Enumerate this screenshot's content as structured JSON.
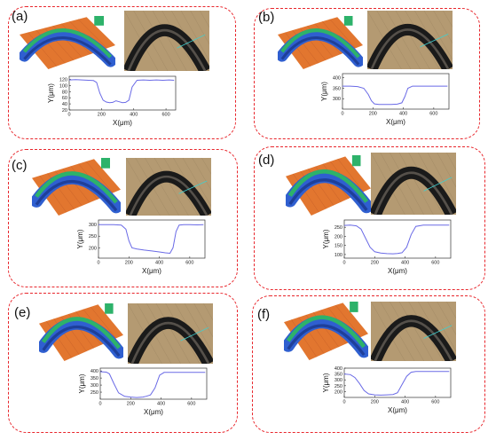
{
  "figure": {
    "panels": [
      {
        "label": "(a)"
      },
      {
        "label": "(b)"
      },
      {
        "label": "(c)"
      },
      {
        "label": "(d)"
      },
      {
        "label": "(e)"
      },
      {
        "label": "(f)"
      }
    ],
    "colors": {
      "border": "#e8262c",
      "profile_line": "#6a6ae6",
      "surface_orange": "#e2762f",
      "surface_blue": "#2f5fd0",
      "surface_green": "#2db26a",
      "micro_bg": "#b49a72",
      "micro_band": "#1a1a1a"
    }
  },
  "chart_data": [
    {
      "type": "line",
      "panel": "(a)",
      "xlabel": "X(μm)",
      "ylabel": "Y(μm)",
      "xlim": [
        0,
        660
      ],
      "ylim": [
        20,
        130
      ],
      "xticks": [
        0,
        200,
        400,
        600
      ],
      "yticks": [
        20,
        40,
        60,
        80,
        100,
        120
      ],
      "x": [
        0,
        40,
        80,
        120,
        150,
        170,
        190,
        210,
        230,
        250,
        270,
        290,
        310,
        330,
        350,
        370,
        390,
        420,
        460,
        500,
        540,
        580,
        620,
        650
      ],
      "y": [
        118,
        119,
        118,
        117,
        116,
        110,
        75,
        52,
        46,
        44,
        45,
        50,
        47,
        44,
        45,
        52,
        95,
        117,
        118,
        117,
        118,
        117,
        118,
        117
      ]
    },
    {
      "type": "line",
      "panel": "(b)",
      "xlabel": "X(μm)",
      "ylabel": "Y(μm)",
      "xlim": [
        0,
        700
      ],
      "ylim": [
        250,
        420
      ],
      "xticks": [
        0,
        200,
        400,
        600
      ],
      "yticks": [
        300,
        350,
        400
      ],
      "x": [
        0,
        50,
        100,
        140,
        170,
        190,
        210,
        240,
        280,
        320,
        360,
        390,
        410,
        430,
        460,
        520,
        580,
        640,
        690
      ],
      "y": [
        360,
        360,
        358,
        350,
        320,
        290,
        275,
        272,
        272,
        272,
        274,
        280,
        310,
        350,
        360,
        360,
        360,
        360,
        360
      ]
    },
    {
      "type": "line",
      "panel": "(c)",
      "xlabel": "X(μm)",
      "ylabel": "Y(μm)",
      "xlim": [
        0,
        700
      ],
      "ylim": [
        155,
        320
      ],
      "xticks": [
        0,
        200,
        400,
        600
      ],
      "yticks": [
        200,
        250,
        300
      ],
      "x": [
        0,
        50,
        100,
        150,
        180,
        200,
        220,
        250,
        300,
        350,
        400,
        440,
        470,
        490,
        510,
        530,
        560,
        600,
        650,
        690
      ],
      "y": [
        300,
        300,
        300,
        298,
        280,
        230,
        200,
        195,
        190,
        186,
        182,
        178,
        176,
        200,
        270,
        298,
        300,
        300,
        299,
        300
      ]
    },
    {
      "type": "line",
      "panel": "(d)",
      "xlabel": "X(μm)",
      "ylabel": "Y(μm)",
      "xlim": [
        0,
        700
      ],
      "ylim": [
        80,
        290
      ],
      "xticks": [
        0,
        200,
        400,
        600
      ],
      "yticks": [
        100,
        150,
        200,
        250
      ],
      "x": [
        0,
        40,
        80,
        110,
        140,
        170,
        200,
        240,
        280,
        320,
        350,
        380,
        410,
        440,
        470,
        520,
        580,
        640,
        690
      ],
      "y": [
        260,
        262,
        258,
        240,
        190,
        140,
        115,
        108,
        105,
        104,
        106,
        110,
        140,
        210,
        255,
        262,
        262,
        262,
        262
      ]
    },
    {
      "type": "line",
      "panel": "(e)",
      "xlabel": "X(μm)",
      "ylabel": "Y(μm)",
      "xlim": [
        0,
        700
      ],
      "ylim": [
        200,
        420
      ],
      "xticks": [
        0,
        200,
        400,
        600
      ],
      "yticks": [
        250,
        300,
        350,
        400
      ],
      "x": [
        0,
        40,
        60,
        90,
        120,
        160,
        200,
        240,
        280,
        300,
        330,
        360,
        390,
        420,
        480,
        540,
        600,
        650,
        690
      ],
      "y": [
        395,
        392,
        380,
        310,
        245,
        220,
        215,
        212,
        215,
        220,
        230,
        280,
        370,
        390,
        390,
        390,
        390,
        390,
        390
      ]
    },
    {
      "type": "line",
      "panel": "(f)",
      "xlabel": "X(μm)",
      "ylabel": "Y(μm)",
      "xlim": [
        0,
        700
      ],
      "ylim": [
        150,
        400
      ],
      "xticks": [
        0,
        200,
        400,
        600
      ],
      "yticks": [
        200,
        250,
        300,
        350,
        400
      ],
      "x": [
        0,
        40,
        70,
        100,
        130,
        160,
        200,
        240,
        280,
        320,
        350,
        380,
        410,
        440,
        470,
        520,
        580,
        640,
        690
      ],
      "y": [
        350,
        345,
        320,
        270,
        210,
        180,
        172,
        170,
        172,
        175,
        190,
        260,
        330,
        365,
        372,
        372,
        372,
        372,
        372
      ]
    }
  ]
}
